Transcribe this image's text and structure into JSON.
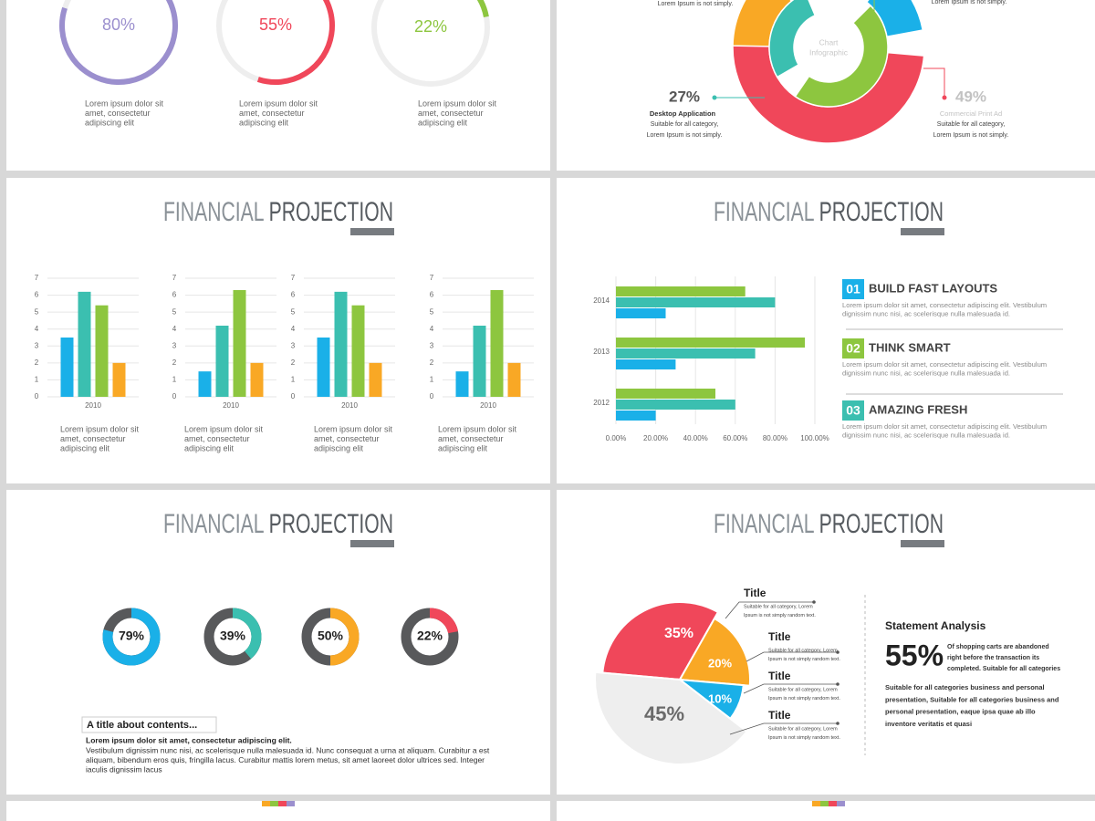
{
  "slides": [
    {
      "title": [
        "FINANCIAL",
        "PROJECTION"
      ]
    },
    {
      "title": [
        "FINANCIAL",
        "PROJECTION"
      ],
      "features": [
        {
          "number": "01",
          "color": "#1ab0e8",
          "title": "BUILD FAST LAYOUTS",
          "lines": [
            "Lorem ipsum dolor sit amet, consectetur adipiscing elit. Vestibulum",
            "dignissim nunc nisi, ac scelerisque nulla malesuada id."
          ]
        },
        {
          "number": "02",
          "color": "#8dc63f",
          "title": "THINK SMART",
          "lines": [
            "Lorem ipsum dolor sit amet, consectetur adipiscing elit. Vestibulum",
            "dignissim nunc nisi, ac scelerisque nulla malesuada id."
          ]
        },
        {
          "number": "03",
          "color": "#3bbfb0",
          "title": "AMAZING FRESH",
          "lines": [
            "Lorem ipsum dolor sit amet, consectetur adipiscing elit. Vestibulum",
            "dignissim nunc nisi, ac scelerisque nulla malesuada id."
          ]
        }
      ]
    },
    {
      "title": [
        "FINANCIAL",
        "PROJECTION"
      ],
      "box_title": "A title about contents...",
      "lead": "Lorem ipsum dolor sit amet, consectetur adipiscing elit.",
      "body": [
        "Vestibulum dignissim nunc nisi, ac scelerisque nulla malesuada id. Nunc consequat a urna at aliquam. Curabitur a est",
        "aliquam, bibendum eros quis, fringilla lacus. Curabitur mattis lorem metus, sit amet laoreet dolor ultrices sed. Integer",
        "iaculis dignissim lacus"
      ]
    },
    {
      "title": [
        "FINANCIAL",
        "PROJECTION"
      ],
      "heading": "Statement Analysis",
      "stat": "55%",
      "stat_lines": [
        "Of shopping carts are abandoned",
        "right before the transaction its",
        "completed. Suitable for all categories"
      ],
      "body": [
        "Suitable for all categories business and personal",
        "presentation, Suitable for all categories business and",
        "personal presentation, eaque ipsa quae ab illo",
        "inventore veritatis et quasi"
      ]
    }
  ],
  "chart_data": [
    {
      "type": "gauge",
      "values": [
        80,
        55,
        22
      ],
      "value_labels": [
        "80%",
        "55%",
        "22%"
      ],
      "colors": [
        "#9b8fce",
        "#f0475a",
        "#8dc63f"
      ],
      "captions": [
        [
          "Lorem ipsum dolor sit",
          "amet, consectetur",
          "adipiscing elit"
        ],
        [
          "Lorem ipsum dolor sit",
          "amet, consectetur",
          "adipiscing elit"
        ],
        [
          "Lorem ipsum dolor sit",
          "amet, consectetur",
          "adipiscing elit"
        ]
      ]
    },
    {
      "type": "donut",
      "outer": {
        "values": [
          49,
          14,
          6,
          5,
          11
        ],
        "value_labels": [
          "49%",
          null,
          null,
          null,
          null
        ],
        "colors": [
          "#f0475a",
          "#f9a825",
          "#5b7fc4",
          "#f0475a",
          "#1ab0e8"
        ]
      },
      "inner": {
        "values": [
          27,
          47
        ],
        "value_labels": [
          "27%",
          null
        ],
        "colors": [
          "#3bbfb0",
          "#8dc63f"
        ]
      },
      "center_label": [
        "Chart",
        "Infographic"
      ],
      "annotations": [
        {
          "title": "Desktop Application",
          "lines": [
            "Suitable for all category,",
            "Lorem Ipsum is not simply."
          ]
        },
        {
          "title": "Commercial Print Ad",
          "lines": [
            "Suitable for all category,",
            "Lorem Ipsum is not simply."
          ]
        }
      ],
      "top_notes": [
        "Lorem Ipsum is not simply.",
        "Lorem Ipsum is not simply."
      ]
    },
    {
      "type": "bar",
      "categories": [
        "2010"
      ],
      "series": [
        {
          "color": "#1ab0e8",
          "values": [
            3.5
          ]
        },
        {
          "color": "#3bbfb0",
          "values": [
            6.2
          ]
        },
        {
          "color": "#8dc63f",
          "values": [
            5.4
          ]
        },
        {
          "color": "#f9a825",
          "values": [
            2
          ]
        }
      ],
      "ylim": [
        0,
        7
      ],
      "yticks": [
        0,
        1,
        2,
        3,
        4,
        5,
        6,
        7
      ],
      "grid": true,
      "caption": [
        "Lorem ipsum dolor sit",
        "amet, consectetur",
        "adipiscing elit"
      ]
    },
    {
      "type": "bar",
      "categories": [
        "2010"
      ],
      "series": [
        {
          "color": "#1ab0e8",
          "values": [
            1.5
          ]
        },
        {
          "color": "#3bbfb0",
          "values": [
            4.2
          ]
        },
        {
          "color": "#8dc63f",
          "values": [
            6.3
          ]
        },
        {
          "color": "#f9a825",
          "values": [
            2
          ]
        }
      ],
      "ylim": [
        0,
        7
      ],
      "yticks": [
        0,
        1,
        2,
        3,
        4,
        5,
        6,
        7
      ],
      "grid": true,
      "caption": [
        "Lorem ipsum dolor sit",
        "amet, consectetur",
        "adipiscing elit"
      ]
    },
    {
      "type": "bar",
      "categories": [
        "2010"
      ],
      "series": [
        {
          "color": "#1ab0e8",
          "values": [
            3.5
          ]
        },
        {
          "color": "#3bbfb0",
          "values": [
            6.2
          ]
        },
        {
          "color": "#8dc63f",
          "values": [
            5.4
          ]
        },
        {
          "color": "#f9a825",
          "values": [
            2
          ]
        }
      ],
      "ylim": [
        0,
        7
      ],
      "yticks": [
        0,
        1,
        2,
        3,
        4,
        5,
        6,
        7
      ],
      "grid": true,
      "caption": [
        "Lorem ipsum dolor sit",
        "amet, consectetur",
        "adipiscing elit"
      ]
    },
    {
      "type": "bar",
      "categories": [
        "2010"
      ],
      "series": [
        {
          "color": "#1ab0e8",
          "values": [
            1.5
          ]
        },
        {
          "color": "#3bbfb0",
          "values": [
            4.2
          ]
        },
        {
          "color": "#8dc63f",
          "values": [
            6.3
          ]
        },
        {
          "color": "#f9a825",
          "values": [
            2
          ]
        }
      ],
      "ylim": [
        0,
        7
      ],
      "yticks": [
        0,
        1,
        2,
        3,
        4,
        5,
        6,
        7
      ],
      "grid": true,
      "caption": [
        "Lorem ipsum dolor sit",
        "amet, consectetur",
        "adipiscing elit"
      ]
    },
    {
      "type": "hbar",
      "categories": [
        "2012",
        "2013",
        "2014"
      ],
      "series": [
        {
          "color": "#8dc63f",
          "values": [
            50,
            95,
            65
          ]
        },
        {
          "color": "#3bbfb0",
          "values": [
            60,
            70,
            80
          ]
        },
        {
          "color": "#1ab0e8",
          "values": [
            20,
            30,
            25
          ]
        }
      ],
      "xlim": [
        0,
        100
      ],
      "xticks": [
        {
          "value": 0,
          "label": "0.00%"
        },
        {
          "value": 20,
          "label": "20.00%"
        },
        {
          "value": 40,
          "label": "40.00%"
        },
        {
          "value": 60,
          "label": "60.00%"
        },
        {
          "value": 80,
          "label": "80.00%"
        },
        {
          "value": 100,
          "label": "100.00%"
        }
      ],
      "grid": true
    },
    {
      "type": "gauge",
      "values": [
        79,
        39,
        50,
        22
      ],
      "value_labels": [
        "79%",
        "39%",
        "50%",
        "22%"
      ],
      "colors": [
        "#1ab0e8",
        "#3bbfb0",
        "#f9a825",
        "#f0475a"
      ]
    },
    {
      "type": "pie",
      "values": [
        35,
        20,
        10,
        45
      ],
      "value_labels": [
        "35%",
        "20%",
        "10%",
        "45%"
      ],
      "colors": [
        "#f0475a",
        "#f9a825",
        "#1ab0e8",
        "#eeeeee"
      ],
      "annotations": [
        {
          "title": "Title",
          "lines": [
            "Suitable for all category, Lorem",
            "Ipsum is not simply random text."
          ]
        },
        {
          "title": "Title",
          "lines": [
            "Suitable for all category, Lorem",
            "Ipsum is not simply random text."
          ]
        },
        {
          "title": "Title",
          "lines": [
            "Suitable for all category, Lorem",
            "Ipsum is not simply random text."
          ]
        },
        {
          "title": "Title",
          "lines": [
            "Suitable for all category, Lorem",
            "Ipsum is not simply random text."
          ]
        }
      ]
    }
  ]
}
